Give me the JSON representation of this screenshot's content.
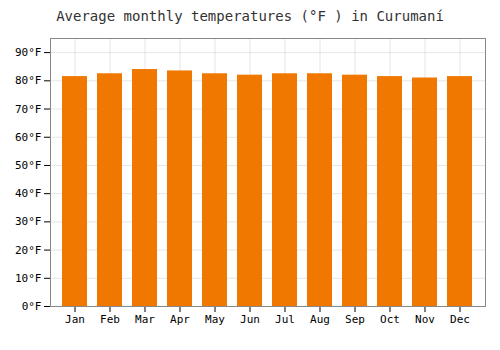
{
  "chart_data": {
    "type": "bar",
    "title": "Average monthly temperatures (°F ) in Curumaní",
    "categories": [
      "Jan",
      "Feb",
      "Mar",
      "Apr",
      "May",
      "Jun",
      "Jul",
      "Aug",
      "Sep",
      "Oct",
      "Nov",
      "Dec"
    ],
    "values": [
      81.5,
      82.5,
      84.0,
      83.5,
      82.5,
      82.0,
      82.5,
      82.5,
      82.0,
      81.5,
      81.0,
      81.5
    ],
    "color": "#F07800",
    "ylim": [
      0,
      95
    ],
    "yticks": [
      {
        "value": 0,
        "label": "0°F"
      },
      {
        "value": 10,
        "label": "10°F"
      },
      {
        "value": 20,
        "label": "20°F"
      },
      {
        "value": 30,
        "label": "30°F"
      },
      {
        "value": 40,
        "label": "40°F"
      },
      {
        "value": 50,
        "label": "50°F"
      },
      {
        "value": 60,
        "label": "60°F"
      },
      {
        "value": 70,
        "label": "70°F"
      },
      {
        "value": 80,
        "label": "80°F"
      },
      {
        "value": 90,
        "label": "90°F"
      }
    ],
    "grid": true
  }
}
